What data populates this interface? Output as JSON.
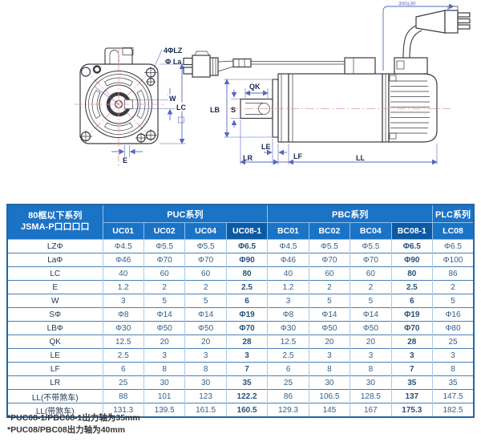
{
  "diagram": {
    "front": {
      "label_holes": "4ΦLZ",
      "label_pilot": "Φ La",
      "label_w": "W",
      "label_lc": "LC",
      "label_e": "E"
    },
    "side": {
      "label_qk": "QK",
      "label_lb": "LB",
      "label_s": "S",
      "label_le": "LE",
      "label_lr": "LR",
      "label_lf": "LF",
      "label_ll": "LL",
      "label_cable": "300±30"
    }
  },
  "table": {
    "corner": {
      "line1": "80框以下系列",
      "line2": "JSMA-P口口口口"
    },
    "groups": [
      {
        "label": "PUC系列",
        "span": 4
      },
      {
        "label": "PBC系列",
        "span": 4
      },
      {
        "label": "PLC系列",
        "span": 1
      }
    ],
    "columns": [
      "UC01",
      "UC02",
      "UC04",
      "UC08-1",
      "BC01",
      "BC02",
      "BC04",
      "BC08-1",
      "LC08"
    ],
    "highlight_columns": [
      3,
      7
    ],
    "rows": [
      {
        "label": "LZΦ",
        "values": [
          "Φ4.5",
          "Φ5.5",
          "Φ5.5",
          "Φ6.5",
          "Φ4.5",
          "Φ5.5",
          "Φ5.5",
          "Φ6.5",
          "Φ6.5"
        ]
      },
      {
        "label": "LaΦ",
        "values": [
          "Φ46",
          "Φ70",
          "Φ70",
          "Φ90",
          "Φ46",
          "Φ70",
          "Φ70",
          "Φ90",
          "Φ100"
        ]
      },
      {
        "label": "LC",
        "values": [
          "40",
          "60",
          "60",
          "80",
          "40",
          "60",
          "60",
          "80",
          "86"
        ]
      },
      {
        "label": "E",
        "values": [
          "1.2",
          "2",
          "2",
          "2.5",
          "1.2",
          "2",
          "2",
          "2.5",
          "2"
        ]
      },
      {
        "label": "W",
        "values": [
          "3",
          "5",
          "5",
          "6",
          "3",
          "5",
          "5",
          "6",
          "5"
        ]
      },
      {
        "label": "SΦ",
        "values": [
          "Φ8",
          "Φ14",
          "Φ14",
          "Φ19",
          "Φ8",
          "Φ14",
          "Φ14",
          "Φ19",
          "Φ16"
        ]
      },
      {
        "label": "LBΦ",
        "values": [
          "Φ30",
          "Φ50",
          "Φ50",
          "Φ70",
          "Φ30",
          "Φ50",
          "Φ50",
          "Φ70",
          "Φ80"
        ]
      },
      {
        "label": "QK",
        "values": [
          "12.5",
          "20",
          "20",
          "28",
          "12.5",
          "20",
          "20",
          "28",
          "25"
        ]
      },
      {
        "label": "LE",
        "values": [
          "2.5",
          "3",
          "3",
          "3",
          "2.5",
          "3",
          "3",
          "3",
          "3"
        ]
      },
      {
        "label": "LF",
        "values": [
          "6",
          "8",
          "8",
          "7",
          "6",
          "8",
          "8",
          "7",
          "8"
        ]
      },
      {
        "label": "LR",
        "values": [
          "25",
          "30",
          "30",
          "35",
          "25",
          "30",
          "30",
          "35",
          "35"
        ]
      },
      {
        "label": "LL(不带煞车)",
        "values": [
          "88",
          "101",
          "123",
          "122.2",
          "86",
          "106.5",
          "128.5",
          "137",
          "147.5"
        ]
      },
      {
        "label": "LL(带煞车)",
        "values": [
          "131.3",
          "139.5",
          "161.5",
          "160.5",
          "129.3",
          "145",
          "167",
          "175.3",
          "182.5"
        ]
      }
    ]
  },
  "footnotes": [
    "*PUC08-1/PBC08-1出力轴为35mm",
    "*PUC08/PBC08出力轴为40mm"
  ],
  "colors": {
    "header_blue": "#1b73c6",
    "header_dark_blue": "#0d5aa4",
    "dimension_blue": "#5668c0",
    "centerline_pink": "#e89898",
    "label_navy": "#18264f"
  }
}
